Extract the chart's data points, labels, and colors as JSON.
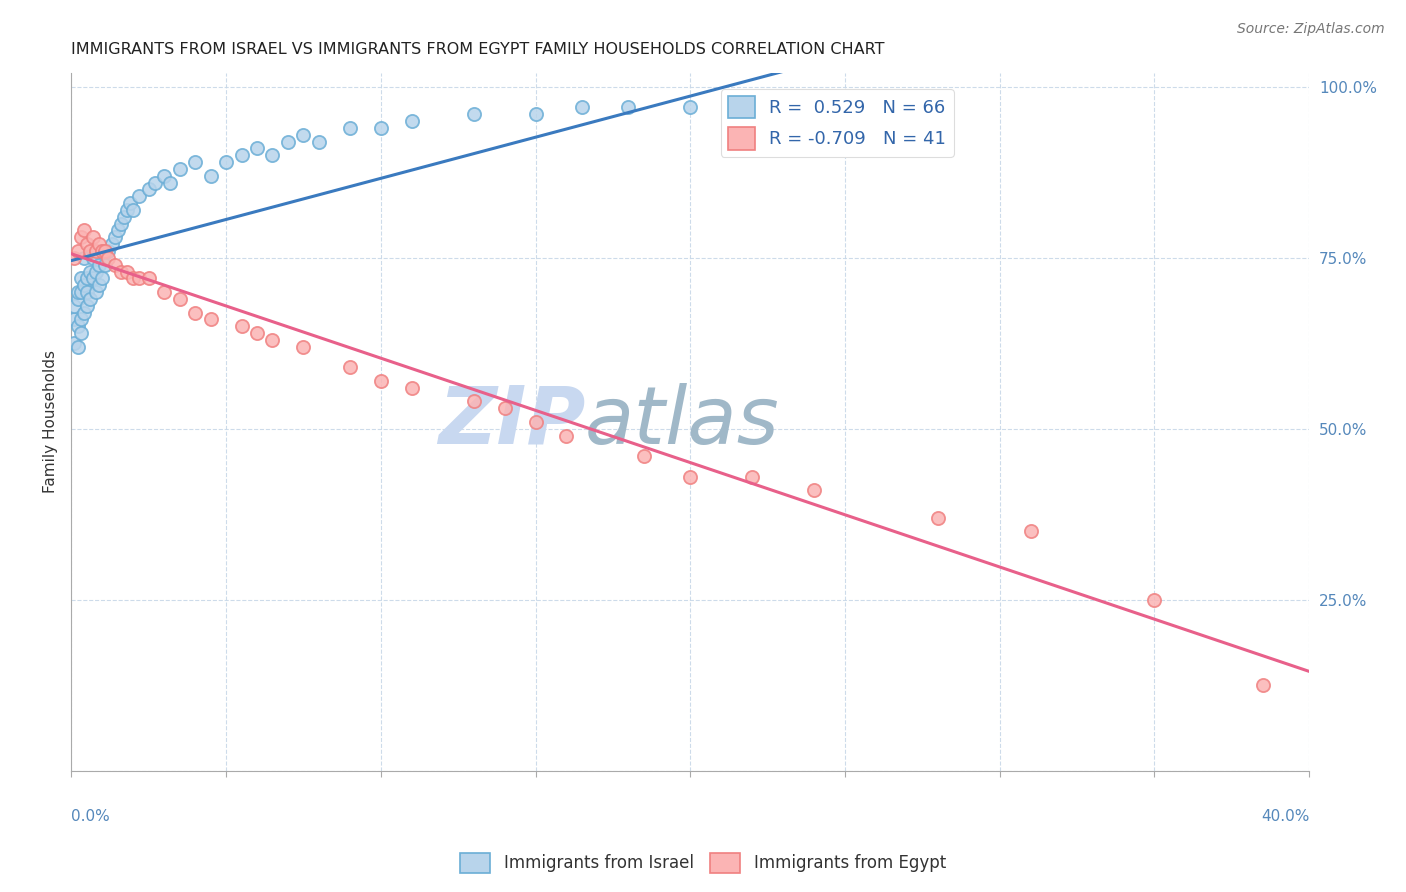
{
  "title": "IMMIGRANTS FROM ISRAEL VS IMMIGRANTS FROM EGYPT FAMILY HOUSEHOLDS CORRELATION CHART",
  "source": "Source: ZipAtlas.com",
  "ylabel": "Family Households",
  "israel_R": 0.529,
  "israel_N": 66,
  "egypt_R": -0.709,
  "egypt_N": 41,
  "israel_color": "#6baed6",
  "israel_color_fill": "#b8d4eb",
  "egypt_color": "#f08080",
  "egypt_color_fill": "#fbb4b4",
  "trend_israel_color": "#3a7abf",
  "trend_egypt_color": "#e8608a",
  "watermark_zip": "ZIP",
  "watermark_atlas": "atlas",
  "watermark_color_zip": "#c8d8f0",
  "watermark_color_atlas": "#a0b8c8",
  "xmin": 0.0,
  "xmax": 0.4,
  "ymin": 0.0,
  "ymax": 1.02,
  "israel_scatter_x": [
    0.001,
    0.001,
    0.001,
    0.002,
    0.002,
    0.002,
    0.002,
    0.003,
    0.003,
    0.003,
    0.003,
    0.004,
    0.004,
    0.004,
    0.005,
    0.005,
    0.005,
    0.006,
    0.006,
    0.007,
    0.007,
    0.008,
    0.008,
    0.009,
    0.009,
    0.01,
    0.01,
    0.011,
    0.012,
    0.013,
    0.014,
    0.015,
    0.016,
    0.017,
    0.018,
    0.019,
    0.02,
    0.022,
    0.025,
    0.027,
    0.03,
    0.032,
    0.035,
    0.04,
    0.045,
    0.05,
    0.055,
    0.06,
    0.065,
    0.07,
    0.075,
    0.08,
    0.09,
    0.1,
    0.11,
    0.13,
    0.15,
    0.165,
    0.18,
    0.2,
    0.215,
    0.23,
    0.242,
    0.255,
    0.26,
    0.27
  ],
  "israel_scatter_y": [
    0.625,
    0.66,
    0.68,
    0.62,
    0.65,
    0.69,
    0.7,
    0.64,
    0.66,
    0.7,
    0.72,
    0.67,
    0.71,
    0.75,
    0.68,
    0.7,
    0.72,
    0.69,
    0.73,
    0.72,
    0.75,
    0.7,
    0.73,
    0.71,
    0.74,
    0.72,
    0.76,
    0.74,
    0.76,
    0.77,
    0.78,
    0.79,
    0.8,
    0.81,
    0.82,
    0.83,
    0.82,
    0.84,
    0.85,
    0.86,
    0.87,
    0.86,
    0.88,
    0.89,
    0.87,
    0.89,
    0.9,
    0.91,
    0.9,
    0.92,
    0.93,
    0.92,
    0.94,
    0.94,
    0.95,
    0.96,
    0.96,
    0.97,
    0.97,
    0.97,
    0.975,
    0.975,
    0.975,
    0.975,
    0.98,
    0.98
  ],
  "egypt_scatter_x": [
    0.001,
    0.002,
    0.003,
    0.004,
    0.005,
    0.006,
    0.007,
    0.008,
    0.009,
    0.01,
    0.011,
    0.012,
    0.014,
    0.016,
    0.018,
    0.02,
    0.022,
    0.025,
    0.03,
    0.035,
    0.04,
    0.045,
    0.055,
    0.06,
    0.065,
    0.075,
    0.09,
    0.1,
    0.11,
    0.13,
    0.14,
    0.15,
    0.16,
    0.185,
    0.2,
    0.22,
    0.24,
    0.28,
    0.31,
    0.35,
    0.385
  ],
  "egypt_scatter_y": [
    0.75,
    0.76,
    0.78,
    0.79,
    0.77,
    0.76,
    0.78,
    0.76,
    0.77,
    0.76,
    0.76,
    0.75,
    0.74,
    0.73,
    0.73,
    0.72,
    0.72,
    0.72,
    0.7,
    0.69,
    0.67,
    0.66,
    0.65,
    0.64,
    0.63,
    0.62,
    0.59,
    0.57,
    0.56,
    0.54,
    0.53,
    0.51,
    0.49,
    0.46,
    0.43,
    0.43,
    0.41,
    0.37,
    0.35,
    0.25,
    0.125
  ]
}
